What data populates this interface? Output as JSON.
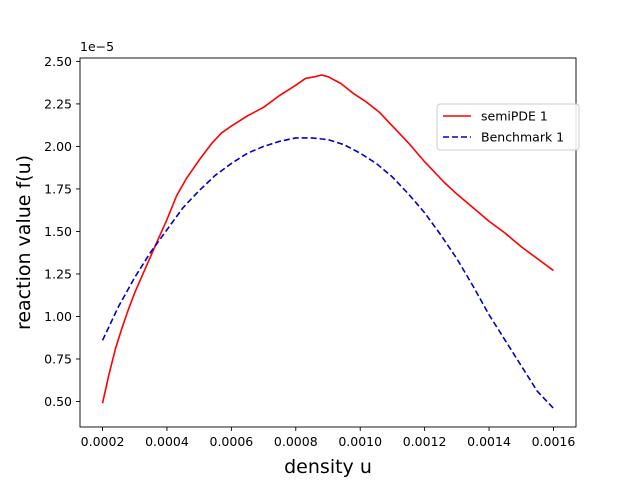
{
  "chart_data": {
    "type": "line",
    "title": "",
    "xlabel": "density u",
    "ylabel": "reaction value f(u)",
    "y_offset_label": "1e−5",
    "xlim": [
      0.00013,
      0.00167
    ],
    "ylim": [
      0.35,
      2.52
    ],
    "y_scale_note": "values in units of 1e-5",
    "grid": false,
    "legend_position": "right",
    "xticks": [
      0.0002,
      0.0004,
      0.0006,
      0.0008,
      0.001,
      0.0012,
      0.0014,
      0.0016
    ],
    "xtick_labels": [
      "0.0002",
      "0.0004",
      "0.0006",
      "0.0008",
      "0.0010",
      "0.0012",
      "0.0014",
      "0.0016"
    ],
    "yticks": [
      0.5,
      0.75,
      1.0,
      1.25,
      1.5,
      1.75,
      2.0,
      2.25,
      2.5
    ],
    "ytick_labels": [
      "0.50",
      "0.75",
      "1.00",
      "1.25",
      "1.50",
      "1.75",
      "2.00",
      "2.25",
      "2.50"
    ],
    "series": [
      {
        "name": "semiPDE 1",
        "color": "#ff0000",
        "dash": "solid",
        "x": [
          0.0002,
          0.00022,
          0.00024,
          0.00026,
          0.00028,
          0.0003,
          0.00033,
          0.00036,
          0.0004,
          0.00043,
          0.00046,
          0.0005,
          0.00054,
          0.00057,
          0.0006,
          0.00065,
          0.0007,
          0.00075,
          0.0008,
          0.00083,
          0.00086,
          0.00088,
          0.0009,
          0.00094,
          0.00098,
          0.00102,
          0.00106,
          0.0011,
          0.00115,
          0.0012,
          0.00126,
          0.0013,
          0.00135,
          0.0014,
          0.00145,
          0.0015,
          0.00155,
          0.0016
        ],
        "y": [
          0.49,
          0.66,
          0.81,
          0.93,
          1.04,
          1.14,
          1.27,
          1.4,
          1.57,
          1.71,
          1.81,
          1.92,
          2.02,
          2.08,
          2.12,
          2.18,
          2.23,
          2.3,
          2.36,
          2.4,
          2.41,
          2.42,
          2.41,
          2.37,
          2.31,
          2.26,
          2.2,
          2.12,
          2.02,
          1.91,
          1.79,
          1.72,
          1.64,
          1.56,
          1.49,
          1.41,
          1.34,
          1.27
        ]
      },
      {
        "name": "Benchmark 1",
        "color": "#0000cc",
        "dash": "dashed",
        "x": [
          0.0002,
          0.00025,
          0.0003,
          0.00035,
          0.0004,
          0.00045,
          0.0005,
          0.00055,
          0.0006,
          0.00065,
          0.0007,
          0.00075,
          0.0008,
          0.00085,
          0.0009,
          0.00095,
          0.001,
          0.00105,
          0.0011,
          0.00115,
          0.0012,
          0.00125,
          0.0013,
          0.00135,
          0.0014,
          0.00145,
          0.0015,
          0.00155,
          0.0016
        ],
        "y": [
          0.86,
          1.06,
          1.23,
          1.38,
          1.51,
          1.64,
          1.74,
          1.83,
          1.9,
          1.96,
          2.0,
          2.03,
          2.05,
          2.05,
          2.04,
          2.01,
          1.96,
          1.9,
          1.82,
          1.72,
          1.61,
          1.48,
          1.34,
          1.18,
          1.01,
          0.86,
          0.71,
          0.56,
          0.46
        ]
      }
    ]
  }
}
